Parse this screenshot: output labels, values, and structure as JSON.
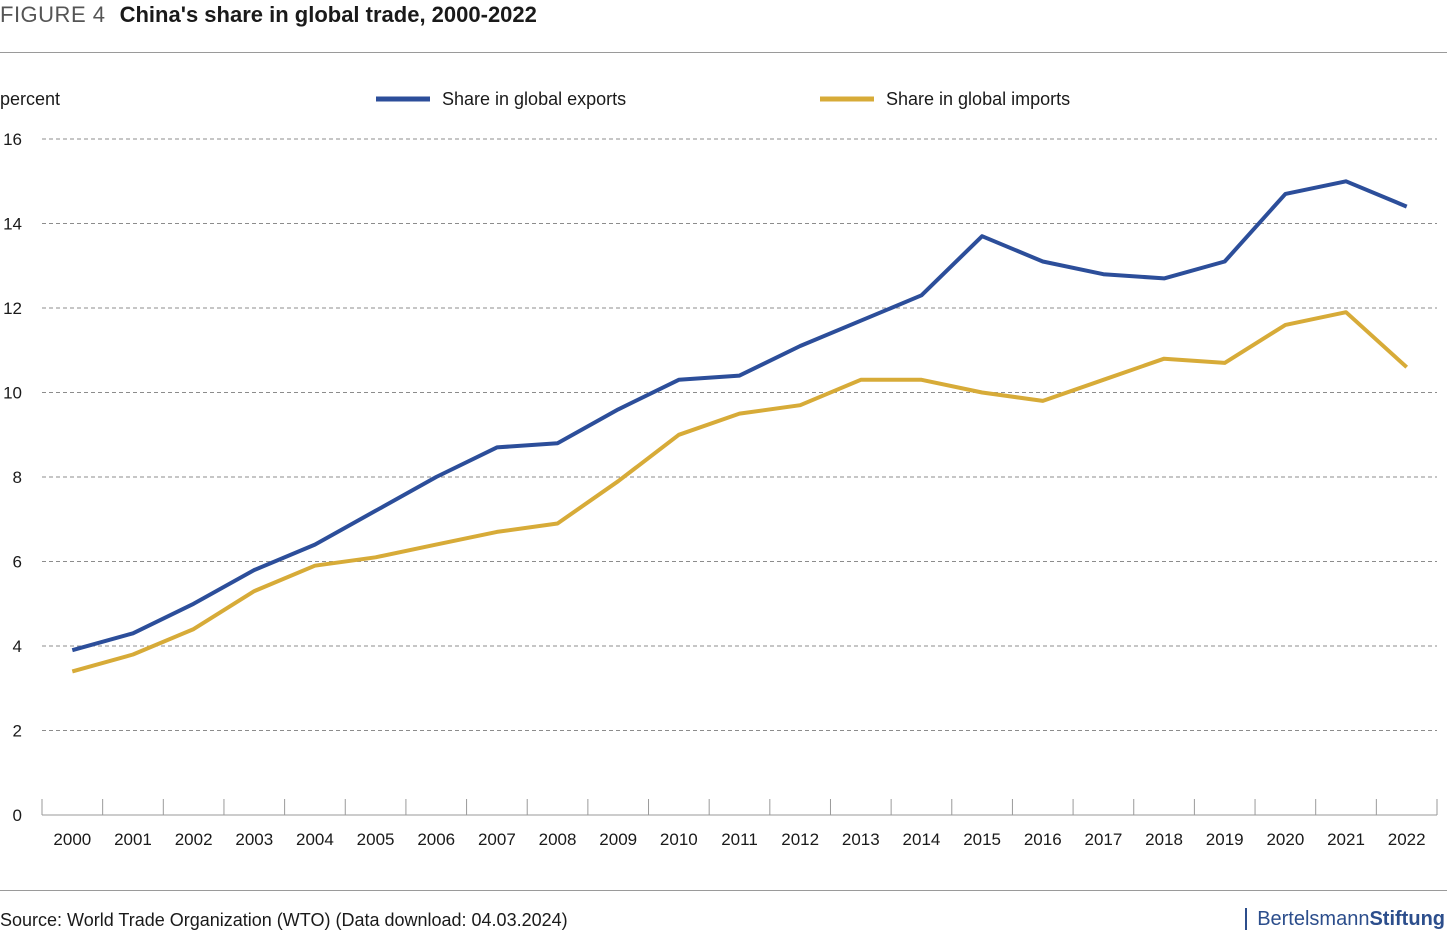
{
  "header": {
    "figure_label": "FIGURE 4",
    "title": "China's share in global trade, 2000-2022"
  },
  "chart_data": {
    "type": "line",
    "title": "China's share in global trade, 2000-2022",
    "ylabel": "percent",
    "xlabel": "",
    "ylim": [
      0,
      16
    ],
    "yticks": [
      0,
      2,
      4,
      6,
      8,
      10,
      12,
      14,
      16
    ],
    "grid": true,
    "legend_placement": "top-center",
    "categories": [
      "2000",
      "2001",
      "2002",
      "2003",
      "2004",
      "2005",
      "2006",
      "2007",
      "2008",
      "2009",
      "2010",
      "2011",
      "2012",
      "2013",
      "2014",
      "2015",
      "2016",
      "2017",
      "2018",
      "2019",
      "2020",
      "2021",
      "2022"
    ],
    "series": [
      {
        "name": "Share in global exports",
        "color": "#2c4e9a",
        "values": [
          3.9,
          4.3,
          5.0,
          5.8,
          6.4,
          7.2,
          8.0,
          8.7,
          8.8,
          9.6,
          10.3,
          10.4,
          11.1,
          11.7,
          12.3,
          13.7,
          13.1,
          12.8,
          12.7,
          13.1,
          14.7,
          15.0,
          14.4
        ]
      },
      {
        "name": "Share in global imports",
        "color": "#d7ab38",
        "values": [
          3.4,
          3.8,
          4.4,
          5.3,
          5.9,
          6.1,
          6.4,
          6.7,
          6.9,
          7.9,
          9.0,
          9.5,
          9.7,
          10.3,
          10.3,
          10.0,
          9.8,
          10.3,
          10.8,
          10.7,
          11.6,
          11.9,
          10.6
        ]
      }
    ]
  },
  "footer": {
    "source": "Source: World Trade Organization (WTO) (Data download: 04.03.2024)",
    "brand_part1": "Bertelsmann",
    "brand_part2": "Stiftung"
  }
}
